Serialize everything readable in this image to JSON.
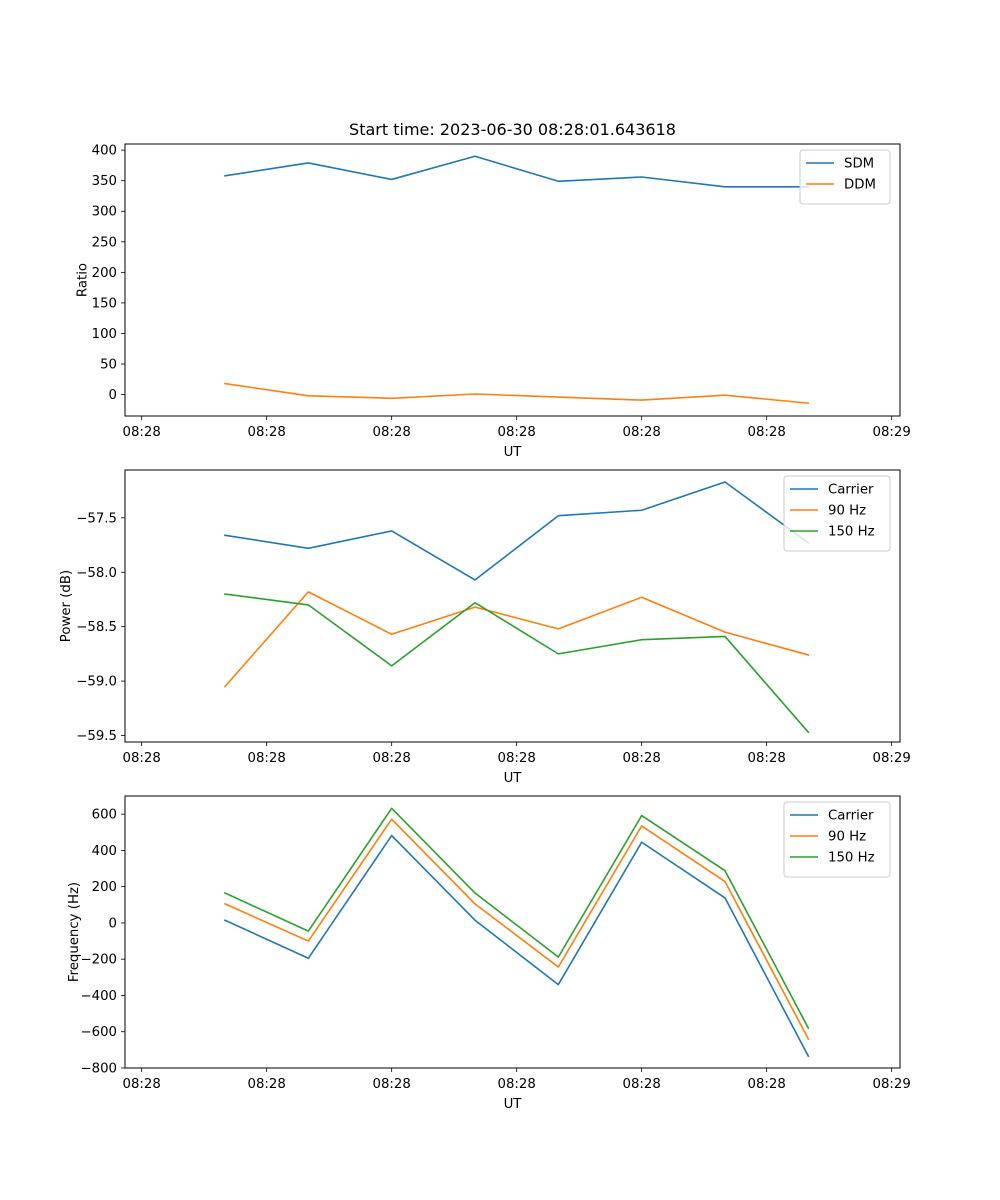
{
  "figure": {
    "title": "Start time: 2023-06-30 08:28:01.643618"
  },
  "chart_data": [
    {
      "type": "line",
      "title": "Start time: 2023-06-30 08:28:01.643618",
      "xlabel": "UT",
      "ylabel": "Ratio",
      "x_ticks": [
        "08:28",
        "08:28",
        "08:28",
        "08:28",
        "08:28",
        "08:28",
        "08:29"
      ],
      "x": [
        1,
        2,
        3,
        4,
        5,
        6,
        7,
        8
      ],
      "xlim": [
        -0.2,
        9.1
      ],
      "ylim": [
        -35,
        410
      ],
      "y_ticks": [
        0,
        50,
        100,
        150,
        200,
        250,
        300,
        350,
        400
      ],
      "y_tick_labels": [
        "0",
        "50",
        "100",
        "150",
        "200",
        "250",
        "300",
        "350",
        "400"
      ],
      "legend_position": "top-right",
      "grid": false,
      "series": [
        {
          "name": "SDM",
          "color": "#1f77b4",
          "values": [
            358,
            379,
            352,
            390,
            349,
            356,
            340,
            340
          ]
        },
        {
          "name": "DDM",
          "color": "#ff7f0e",
          "values": [
            18,
            -2,
            -6,
            1,
            -4,
            -9,
            -1,
            -14
          ]
        }
      ]
    },
    {
      "type": "line",
      "xlabel": "UT",
      "ylabel": "Power (dB)",
      "x_ticks": [
        "08:28",
        "08:28",
        "08:28",
        "08:28",
        "08:28",
        "08:28",
        "08:29"
      ],
      "x": [
        1,
        2,
        3,
        4,
        5,
        6,
        7,
        8
      ],
      "xlim": [
        -0.2,
        9.1
      ],
      "ylim": [
        -59.56,
        -57.06
      ],
      "y_ticks": [
        -59.5,
        -59.0,
        -58.5,
        -58.0,
        -57.5
      ],
      "y_tick_labels": [
        "−59.5",
        "−59.0",
        "−58.5",
        "−58.0",
        "−57.5"
      ],
      "legend_position": "top-right",
      "grid": false,
      "series": [
        {
          "name": "Carrier",
          "color": "#1f77b4",
          "values": [
            -57.66,
            -57.78,
            -57.62,
            -58.07,
            -57.48,
            -57.43,
            -57.17,
            -57.73
          ]
        },
        {
          "name": "90 Hz",
          "color": "#ff7f0e",
          "values": [
            -59.05,
            -58.18,
            -58.57,
            -58.32,
            -58.52,
            -58.23,
            -58.55,
            -58.76
          ]
        },
        {
          "name": "150 Hz",
          "color": "#2ca02c",
          "values": [
            -58.2,
            -58.3,
            -58.86,
            -58.28,
            -58.75,
            -58.62,
            -58.59,
            -59.47
          ]
        }
      ]
    },
    {
      "type": "line",
      "xlabel": "UT",
      "ylabel": "Frequency (Hz)",
      "x_ticks": [
        "08:28",
        "08:28",
        "08:28",
        "08:28",
        "08:28",
        "08:28",
        "08:29"
      ],
      "x": [
        1,
        2,
        3,
        4,
        5,
        6,
        7,
        8
      ],
      "xlim": [
        -0.2,
        9.1
      ],
      "ylim": [
        -800,
        700
      ],
      "y_ticks": [
        -800,
        -600,
        -400,
        -200,
        0,
        200,
        400,
        600
      ],
      "y_tick_labels": [
        "−800",
        "−600",
        "−400",
        "−200",
        "0",
        "200",
        "400",
        "600"
      ],
      "legend_position": "top-right",
      "grid": false,
      "series": [
        {
          "name": "Carrier",
          "color": "#1f77b4",
          "values": [
            15,
            -195,
            482,
            15,
            -340,
            445,
            138,
            -735
          ]
        },
        {
          "name": "90 Hz",
          "color": "#ff7f0e",
          "values": [
            105,
            -100,
            572,
            105,
            -243,
            535,
            228,
            -640
          ]
        },
        {
          "name": "150 Hz",
          "color": "#2ca02c",
          "values": [
            165,
            -45,
            632,
            165,
            -188,
            592,
            288,
            -580
          ]
        }
      ]
    }
  ]
}
